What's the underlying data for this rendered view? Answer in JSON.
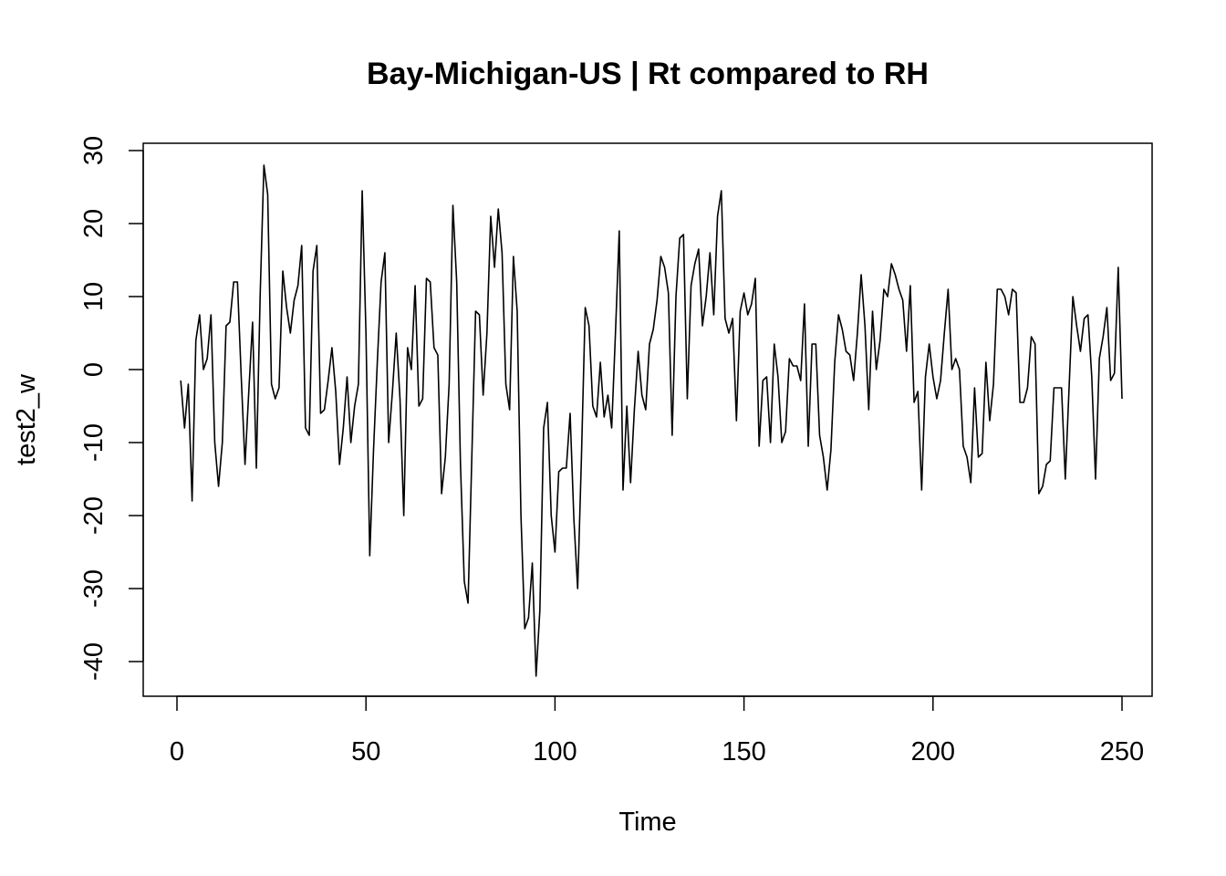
{
  "chart_data": {
    "type": "line",
    "title": "Bay-Michigan-US | Rt compared to RH",
    "xlabel": "Time",
    "ylabel": "test2_w",
    "xlim": [
      0,
      250
    ],
    "ylim": [
      -42,
      30
    ],
    "x_ticks": [
      0,
      50,
      100,
      150,
      200,
      250
    ],
    "y_ticks": [
      -40,
      -30,
      -20,
      -10,
      0,
      10,
      20,
      30
    ],
    "grid": false,
    "series": [
      {
        "x_start": 1,
        "values": [
          -1.5,
          -8,
          -2,
          -18,
          4,
          7.5,
          0,
          1.5,
          7.5,
          -10,
          -16,
          -10,
          6,
          6.5,
          12,
          12,
          -1,
          -13,
          -3,
          6.5,
          -13.5,
          10,
          28,
          24,
          -2,
          -4,
          -2.5,
          13.5,
          8.5,
          5,
          9.5,
          11.5,
          17,
          -8,
          -9,
          13.5,
          17,
          -6,
          -5.5,
          -1.5,
          3,
          -3,
          -13,
          -8,
          -1,
          -10,
          -5,
          -2,
          24.5,
          5,
          -25.5,
          -11,
          1,
          12,
          16,
          -10,
          -3,
          5,
          -4,
          -20,
          3,
          0,
          11.5,
          -5,
          -4,
          12.5,
          12,
          3,
          2,
          -17,
          -12,
          -2,
          22.5,
          12,
          -13,
          -29,
          -32,
          -12,
          8,
          7.5,
          -3.5,
          5,
          21,
          14,
          22,
          16,
          -2,
          -5.5,
          15.5,
          8,
          -20,
          -35.5,
          -34,
          -26.5,
          -42,
          -33,
          -8,
          -4.5,
          -20,
          -25,
          -14,
          -13.5,
          -13.5,
          -6,
          -20.5,
          -30,
          -12,
          8.5,
          6,
          -5,
          -6.5,
          1,
          -6.5,
          -3.5,
          -8,
          5,
          19,
          -16.5,
          -5,
          -15.5,
          -5.5,
          2.5,
          -3.5,
          -5.5,
          3.5,
          5.5,
          9.5,
          15.5,
          14,
          10.5,
          -9,
          10,
          18,
          18.5,
          -4,
          11.5,
          14.5,
          16.5,
          6,
          10,
          16,
          7.5,
          21,
          24.5,
          7,
          5,
          7,
          -7,
          8,
          10.5,
          7.5,
          9,
          12.5,
          -10.5,
          -1.5,
          -1,
          -10,
          3.5,
          -1,
          -10,
          -8.5,
          1.5,
          0.5,
          0.5,
          -1.5,
          9,
          -10.5,
          3.5,
          3.5,
          -9,
          -12,
          -16.5,
          -11,
          1,
          7.5,
          5.5,
          2.5,
          2,
          -1.5,
          5,
          13,
          6,
          -5.5,
          8,
          0,
          4,
          11,
          10,
          14.5,
          13,
          11,
          9.5,
          2.5,
          11.5,
          -4.5,
          -3,
          -16.5,
          -1,
          3.5,
          -1,
          -4,
          -1.5,
          5,
          11,
          0,
          1.5,
          0,
          -10.5,
          -12,
          -15.5,
          -2.5,
          -12,
          -11.5,
          1,
          -7,
          -2,
          11,
          11,
          10,
          7.5,
          11,
          10.5,
          -4.5,
          -4.5,
          -2.5,
          4.5,
          3.5,
          -17,
          -16,
          -13,
          -12.5,
          -2.5,
          -2.5,
          -2.5,
          -15,
          -2.5,
          10,
          6,
          2.5,
          7,
          7.5,
          -1,
          -15,
          1.5,
          4.5,
          8.5,
          -1.5,
          -0.5,
          14,
          -4
        ]
      }
    ]
  }
}
